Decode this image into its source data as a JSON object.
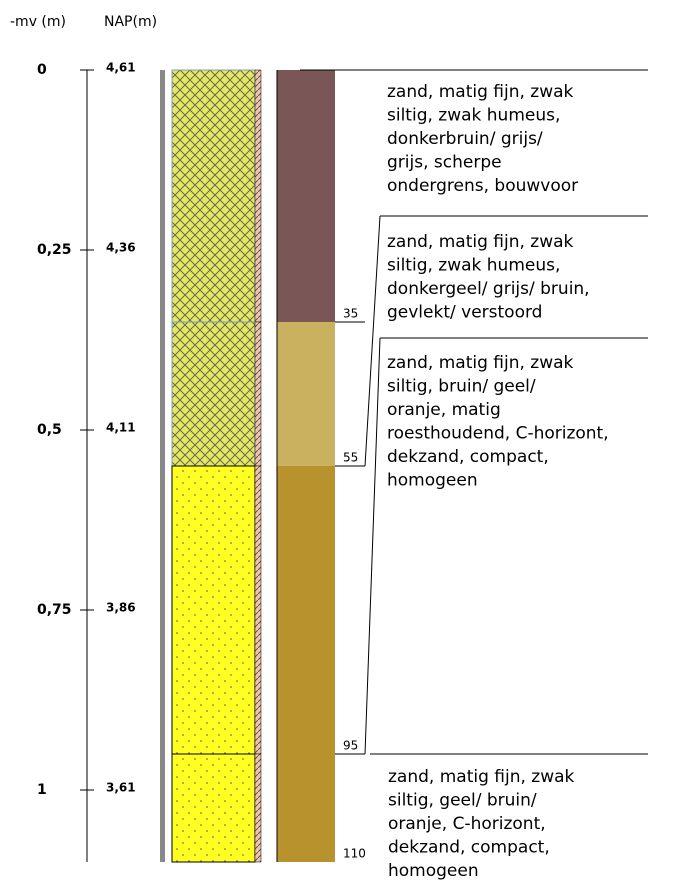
{
  "header": {
    "depth_label": "-mv (m)",
    "nap_label": "NAP(m)"
  },
  "depth_ticks": [
    {
      "value": 0,
      "label": "0",
      "nap": "4,61"
    },
    {
      "value": 0.25,
      "label": "0,25",
      "nap": "4,36"
    },
    {
      "value": 0.5,
      "label": "0,5",
      "nap": "4,11"
    },
    {
      "value": 0.75,
      "label": "0,75",
      "nap": "3,86"
    },
    {
      "value": 1,
      "label": "1",
      "nap": "3,61"
    }
  ],
  "layers": [
    {
      "bottom": 35,
      "color": "#7b5656",
      "description": [
        "zand, matig fijn, zwak",
        "siltig, zwak humeus,",
        "donkerbruin/ grijs/",
        "grijs, scherpe",
        "ondergrens, bouwvoor"
      ]
    },
    {
      "bottom": 55,
      "color": "#c9b160",
      "description": [
        "zand, matig fijn, zwak",
        "siltig, zwak humeus,",
        "donkergeel/ grijs/ bruin,",
        "gevlekt/ verstoord"
      ]
    },
    {
      "bottom": 95,
      "color": "#b8922c",
      "description": [
        "zand, matig fijn, zwak",
        "siltig, bruin/ geel/",
        "oranje, matig",
        "roesthoudend, C-horizont,",
        "dekzand, compact,",
        "homogeen"
      ]
    },
    {
      "bottom": 110,
      "color": "#b8922c",
      "description": [
        "zand, matig fijn, zwak",
        "siltig, geel/ bruin/",
        "oranje, C-horizont,",
        "dekzand, compact,",
        "homogeen"
      ]
    }
  ]
}
